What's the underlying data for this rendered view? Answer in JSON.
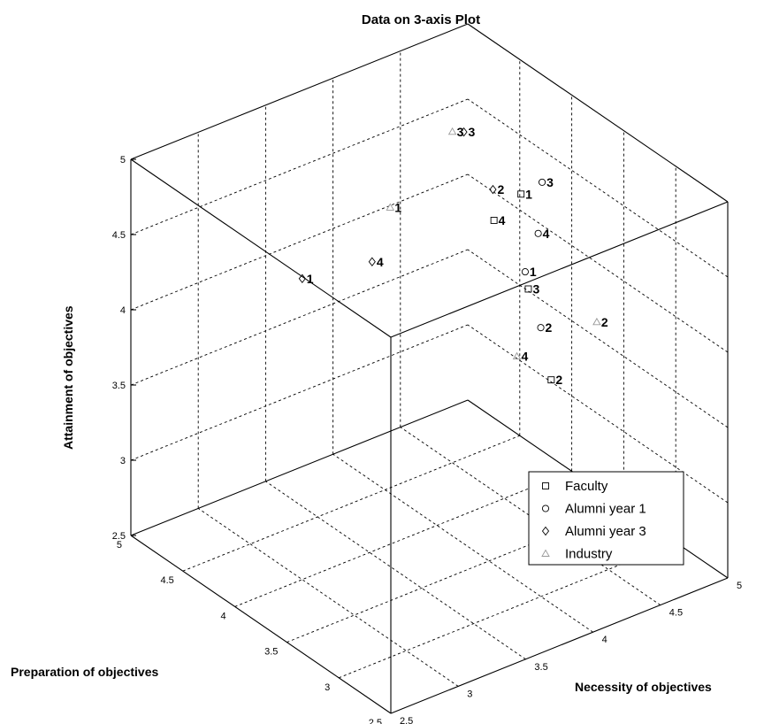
{
  "chart_data": {
    "type": "scatter3d",
    "title": "Data on 3-axis Plot",
    "xlabel": "Necessity of objectives",
    "ylabel": "Preparation of objectives",
    "zlabel": "Attainment of objectives",
    "xlim": [
      2.5,
      5
    ],
    "ylim": [
      2.5,
      5
    ],
    "zlim": [
      2.5,
      5
    ],
    "xticks": [
      "2.5",
      "3",
      "3.5",
      "4",
      "4.5",
      "5"
    ],
    "yticks": [
      "2.5",
      "3",
      "3.5",
      "4",
      "4.5",
      "5"
    ],
    "zticks": [
      "2.5",
      "3",
      "3.5",
      "4",
      "4.5",
      "5"
    ],
    "grid": true,
    "legend_position": "bottom-right",
    "series": [
      {
        "name": "Faculty",
        "marker": "square",
        "points": [
          {
            "x": 4.6,
            "y": 3.97,
            "z": 4.5,
            "label": "1"
          },
          {
            "x": 4.5,
            "y": 3.55,
            "z": 3.5,
            "label": "2"
          },
          {
            "x": 4.5,
            "y": 3.77,
            "z": 4.0,
            "label": "3"
          },
          {
            "x": 4.5,
            "y": 4.1,
            "z": 4.3,
            "label": "4"
          }
        ]
      },
      {
        "name": "Alumni year 1",
        "marker": "circle",
        "points": [
          {
            "x": 4.5,
            "y": 3.8,
            "z": 4.1,
            "label": "1"
          },
          {
            "x": 4.5,
            "y": 3.65,
            "z": 3.8,
            "label": "2"
          },
          {
            "x": 4.78,
            "y": 4.0,
            "z": 4.5,
            "label": "3"
          },
          {
            "x": 4.72,
            "y": 3.96,
            "z": 4.2,
            "label": "4"
          }
        ]
      },
      {
        "name": "Alumni year 3",
        "marker": "diamond",
        "points": [
          {
            "x": 3.0,
            "y": 4.0,
            "z": 4.5,
            "label": "1"
          },
          {
            "x": 4.5,
            "y": 4.11,
            "z": 4.5,
            "label": "2"
          },
          {
            "x": 4.5,
            "y": 4.39,
            "z": 4.75,
            "label": "3"
          },
          {
            "x": 3.75,
            "y": 4.3,
            "z": 4.2,
            "label": "4"
          }
        ]
      },
      {
        "name": "Industry",
        "marker": "triangle",
        "points": [
          {
            "x": 4.0,
            "y": 4.45,
            "z": 4.4,
            "label": "1"
          },
          {
            "x": 4.8,
            "y": 3.5,
            "z": 3.8,
            "label": "2"
          },
          {
            "x": 4.5,
            "y": 4.5,
            "z": 4.7,
            "label": "3"
          },
          {
            "x": 4.5,
            "y": 3.88,
            "z": 3.5,
            "label": "4"
          }
        ]
      }
    ]
  }
}
